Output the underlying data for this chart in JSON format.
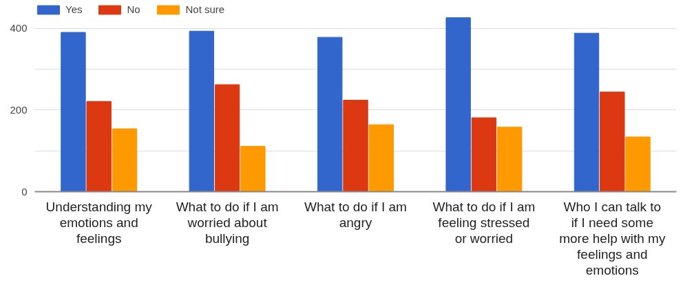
{
  "chart_data": {
    "type": "bar",
    "categories": [
      "Understanding my emotions and feelings",
      "What to do if I am worried about bullying",
      "What to do if I am angry",
      "What to do if I am feeling stressed or worried",
      "Who I can talk to if I need some more help with my feelings and emotions"
    ],
    "series": [
      {
        "name": "Yes",
        "color": "#3366cc",
        "values": [
          390,
          393,
          378,
          426,
          388
        ]
      },
      {
        "name": "No",
        "color": "#dc3912",
        "values": [
          221,
          262,
          224,
          181,
          244
        ]
      },
      {
        "name": "Not sure",
        "color": "#ff9900",
        "values": [
          154,
          111,
          164,
          158,
          134
        ]
      }
    ],
    "ylim": [
      0,
      460
    ],
    "yticks": [
      0,
      {
        "value": 100,
        "label": null
      },
      200,
      {
        "value": 300,
        "label": null
      },
      400
    ],
    "grid": "y",
    "legend": "top left"
  }
}
